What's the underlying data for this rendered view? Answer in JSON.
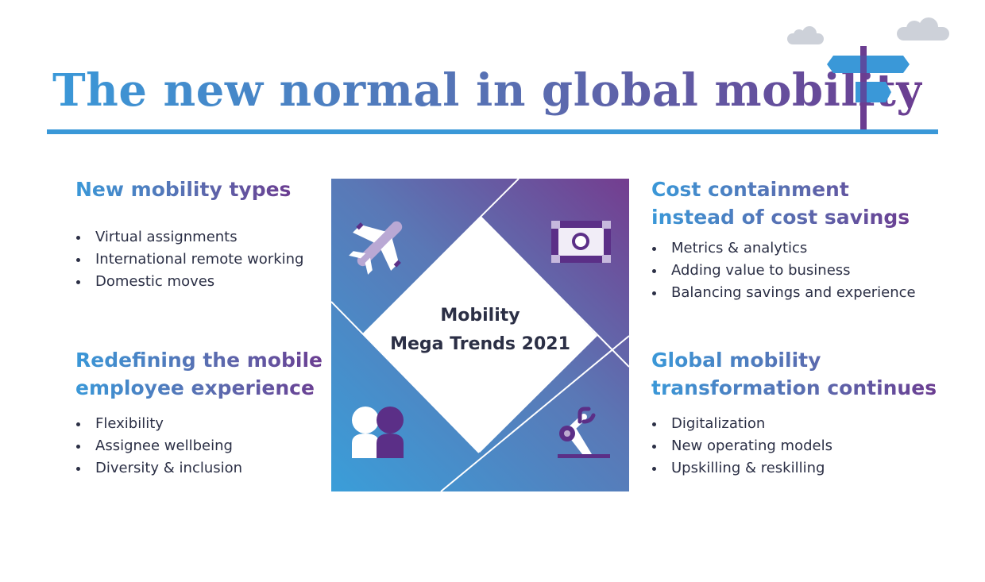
{
  "title": "The new normal in global mobility",
  "center": {
    "line1": "Mobility",
    "line2": "Mega Trends 2021"
  },
  "sections": {
    "new_mobility_types": {
      "heading": "New mobility types",
      "items": [
        "Virtual assignments",
        "International remote working",
        "Domestic moves"
      ]
    },
    "employee_experience": {
      "heading_line1": "Redefining the mobile",
      "heading_line2": "employee experience",
      "items": [
        "Flexibility",
        "Assignee wellbeing",
        "Diversity & inclusion"
      ]
    },
    "cost_containment": {
      "heading_line1": "Cost containment",
      "heading_line2": "instead of cost savings",
      "items": [
        "Metrics & analytics",
        "Adding value to business",
        "Balancing savings and experience"
      ]
    },
    "transformation": {
      "heading_line1": "Global mobility",
      "heading_line2": "transformation continues",
      "items": [
        "Digitalization",
        "New operating models",
        "Upskilling & reskilling"
      ]
    }
  },
  "icons": [
    "airplane-icon",
    "banknote-icon",
    "people-icon",
    "robot-arm-icon",
    "signpost-icon",
    "cloud-icon"
  ],
  "colors": {
    "blue": "#3a98d8",
    "purple": "#6b3d91",
    "text": "#2b2f45",
    "mid": "#5a6db0"
  }
}
